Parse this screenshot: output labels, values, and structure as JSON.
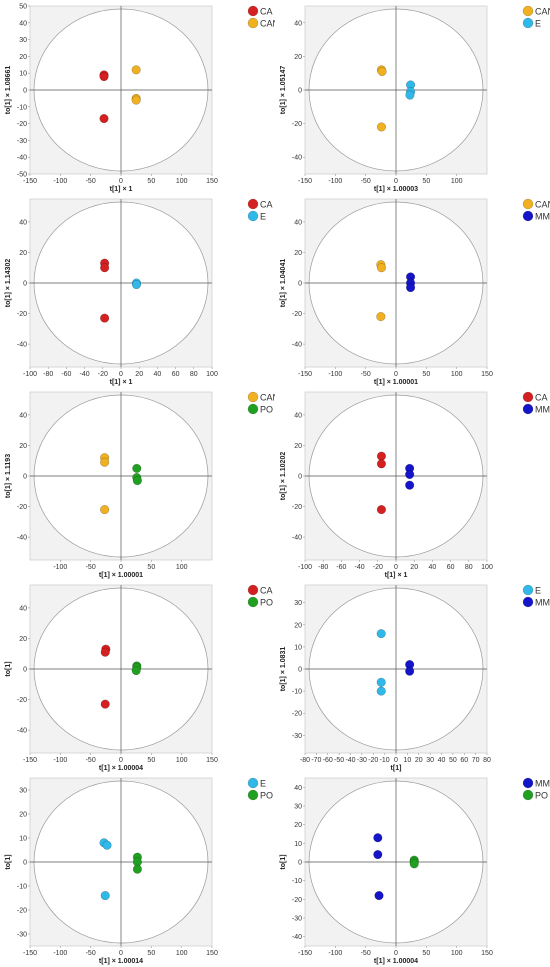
{
  "chart_data": [
    {
      "type": "scatter",
      "xlabel": "t[1] × 1",
      "ylabel": "to[1] × 1.08661",
      "xlim": [
        -150,
        150
      ],
      "ylim": [
        -50,
        50
      ],
      "xticks": [
        -150,
        -100,
        -50,
        0,
        50,
        100,
        150
      ],
      "yticks": [
        -50,
        -40,
        -30,
        -20,
        -10,
        0,
        10,
        20,
        30,
        40,
        50
      ],
      "series": [
        {
          "name": "CA",
          "color": "#d42020",
          "points": [
            [
              -28,
              9
            ],
            [
              -28,
              8
            ],
            [
              -28,
              -17
            ]
          ]
        },
        {
          "name": "CAN",
          "color": "#f0b020",
          "points": [
            [
              25,
              12
            ],
            [
              25,
              -5
            ],
            [
              25,
              -6
            ]
          ]
        }
      ]
    },
    {
      "type": "scatter",
      "xlabel": "t[1] × 1.00003",
      "ylabel": "to[1] × 1.05147",
      "xlim": [
        -150,
        150
      ],
      "ylim": [
        -50,
        50
      ],
      "xticks": [
        -150,
        -100,
        -50,
        0,
        50,
        100
      ],
      "yticks": [
        -40,
        -20,
        0,
        20,
        40
      ],
      "series": [
        {
          "name": "CAN",
          "color": "#f0b020",
          "points": [
            [
              -24,
              12
            ],
            [
              -23,
              11
            ],
            [
              -24,
              -22
            ]
          ]
        },
        {
          "name": "E",
          "color": "#30b8e8",
          "points": [
            [
              24,
              3
            ],
            [
              24,
              -1
            ],
            [
              23,
              -3
            ]
          ]
        }
      ]
    },
    {
      "type": "scatter",
      "xlabel": "t[1] × 1",
      "ylabel": "to[1] × 1.14302",
      "xlim": [
        -100,
        100
      ],
      "ylim": [
        -55,
        55
      ],
      "xticks": [
        -100,
        -80,
        -60,
        -40,
        -20,
        0,
        20,
        40,
        60,
        80,
        100
      ],
      "yticks": [
        -40,
        -20,
        0,
        20,
        40
      ],
      "series": [
        {
          "name": "CA",
          "color": "#d42020",
          "points": [
            [
              -18,
              13
            ],
            [
              -18,
              10
            ],
            [
              -18,
              -23
            ]
          ]
        },
        {
          "name": "E",
          "color": "#30b8e8",
          "points": [
            [
              17,
              0
            ],
            [
              17,
              -1
            ]
          ]
        }
      ]
    },
    {
      "type": "scatter",
      "xlabel": "t[1] × 1.00001",
      "ylabel": "to[1] × 1.04041",
      "xlim": [
        -150,
        150
      ],
      "ylim": [
        -55,
        55
      ],
      "xticks": [
        -150,
        -100,
        -50,
        0,
        50,
        100,
        150
      ],
      "yticks": [
        -40,
        -20,
        0,
        20,
        40
      ],
      "series": [
        {
          "name": "CAN",
          "color": "#f0b020",
          "points": [
            [
              -25,
              12
            ],
            [
              -24,
              10
            ],
            [
              -25,
              -22
            ]
          ]
        },
        {
          "name": "MM",
          "color": "#1414c8",
          "points": [
            [
              24,
              4
            ],
            [
              24,
              0
            ],
            [
              24,
              -3
            ]
          ]
        }
      ]
    },
    {
      "type": "scatter",
      "xlabel": "t[1] × 1.00001",
      "ylabel": "to[1] × 1.1193",
      "xlim": [
        -150,
        150
      ],
      "ylim": [
        -55,
        55
      ],
      "xticks": [
        -100,
        -50,
        0,
        50,
        100
      ],
      "yticks": [
        -40,
        -20,
        0,
        20,
        40
      ],
      "series": [
        {
          "name": "CAN",
          "color": "#f0b020",
          "points": [
            [
              -27,
              12
            ],
            [
              -27,
              9
            ],
            [
              -27,
              -22
            ]
          ]
        },
        {
          "name": "PO",
          "color": "#20a020",
          "points": [
            [
              26,
              5
            ],
            [
              26,
              -1
            ],
            [
              27,
              -3
            ]
          ]
        }
      ]
    },
    {
      "type": "scatter",
      "xlabel": "t[1] × 1",
      "ylabel": "to[1] × 1.10202",
      "xlim": [
        -100,
        100
      ],
      "ylim": [
        -55,
        55
      ],
      "xticks": [
        -100,
        -80,
        -60,
        -40,
        -20,
        0,
        20,
        40,
        60,
        80,
        100
      ],
      "yticks": [
        -40,
        -20,
        0,
        20,
        40
      ],
      "series": [
        {
          "name": "CA",
          "color": "#d42020",
          "points": [
            [
              -16,
              13
            ],
            [
              -16,
              8
            ],
            [
              -16,
              -22
            ]
          ]
        },
        {
          "name": "MM",
          "color": "#1414c8",
          "points": [
            [
              15,
              5
            ],
            [
              15,
              1
            ],
            [
              15,
              -6
            ]
          ]
        }
      ]
    },
    {
      "type": "scatter",
      "xlabel": "t[1] × 1.00004",
      "ylabel": "to[1]",
      "xlim": [
        -150,
        150
      ],
      "ylim": [
        -55,
        55
      ],
      "xticks": [
        -150,
        -100,
        -50,
        0,
        50,
        100,
        150
      ],
      "yticks": [
        -40,
        -20,
        0,
        20,
        40
      ],
      "series": [
        {
          "name": "CA",
          "color": "#d42020",
          "points": [
            [
              -25,
              13
            ],
            [
              -26,
              11
            ],
            [
              -26,
              -23
            ]
          ]
        },
        {
          "name": "PO",
          "color": "#20a020",
          "points": [
            [
              26,
              2
            ],
            [
              26,
              1
            ],
            [
              25,
              -1
            ]
          ]
        }
      ]
    },
    {
      "type": "scatter",
      "xlabel": "t[1]",
      "ylabel": "to[1] × 1.0831",
      "xlim": [
        -80,
        80
      ],
      "ylim": [
        -38,
        38
      ],
      "xticks": [
        -80,
        -70,
        -60,
        -50,
        -40,
        -30,
        -20,
        -10,
        0,
        10,
        20,
        30,
        40,
        50,
        60,
        70,
        80
      ],
      "yticks": [
        -30,
        -20,
        -10,
        0,
        10,
        20,
        30
      ],
      "series": [
        {
          "name": "E",
          "color": "#30b8e8",
          "points": [
            [
              -13,
              16
            ],
            [
              -13,
              -6
            ],
            [
              -13,
              -10
            ]
          ]
        },
        {
          "name": "MM",
          "color": "#1414c8",
          "points": [
            [
              12,
              2
            ],
            [
              12,
              -1
            ]
          ]
        }
      ]
    },
    {
      "type": "scatter",
      "xlabel": "t[1] × 1.00014",
      "ylabel": "to[1]",
      "xlim": [
        -150,
        150
      ],
      "ylim": [
        -35,
        35
      ],
      "xticks": [
        -150,
        -100,
        -50,
        0,
        50,
        100,
        150
      ],
      "yticks": [
        -30,
        -20,
        -10,
        0,
        10,
        20,
        30
      ],
      "series": [
        {
          "name": "E",
          "color": "#30b8e8",
          "points": [
            [
              -28,
              8
            ],
            [
              -23,
              7
            ],
            [
              -26,
              -14
            ]
          ]
        },
        {
          "name": "PO",
          "color": "#20a020",
          "points": [
            [
              27,
              2
            ],
            [
              27,
              0
            ],
            [
              27,
              -3
            ]
          ]
        }
      ]
    },
    {
      "type": "scatter",
      "xlabel": "t[1] × 1.00004",
      "ylabel": "to[1]",
      "xlim": [
        -150,
        150
      ],
      "ylim": [
        -45,
        45
      ],
      "xticks": [
        -150,
        -100,
        -50,
        0,
        50,
        100,
        150
      ],
      "yticks": [
        -40,
        -30,
        -20,
        -10,
        0,
        10,
        20,
        30,
        40
      ],
      "series": [
        {
          "name": "MM",
          "color": "#1414c8",
          "points": [
            [
              -30,
              13
            ],
            [
              -30,
              4
            ],
            [
              -28,
              -18
            ]
          ]
        },
        {
          "name": "PO",
          "color": "#20a020",
          "points": [
            [
              30,
              1
            ],
            [
              30,
              0
            ],
            [
              30,
              -1
            ]
          ]
        }
      ]
    }
  ]
}
